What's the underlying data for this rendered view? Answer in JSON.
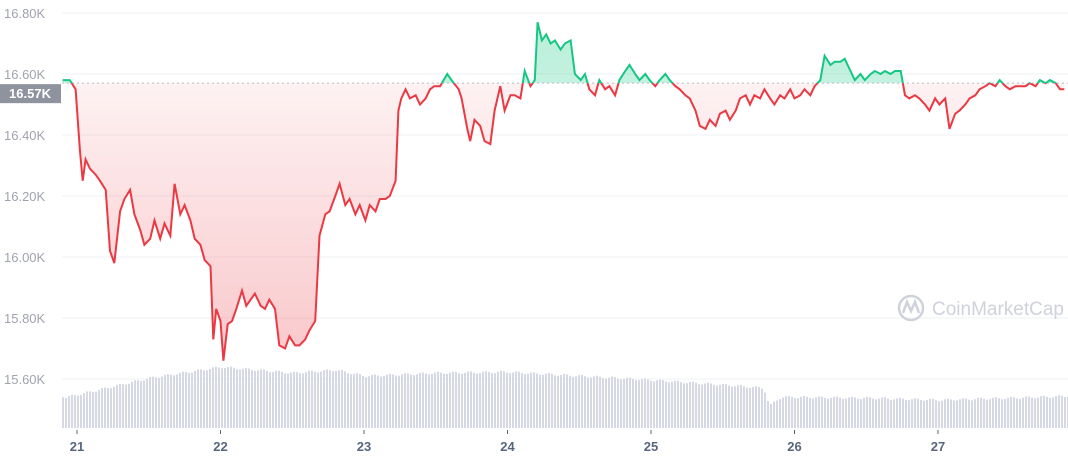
{
  "watermark": "CoinMarketCap",
  "colors": {
    "up": "#16c784",
    "down": "#ea3943",
    "volume": "#d6d8e6",
    "reference_label_bg": "#8f939e",
    "grid": "#eff2f5"
  },
  "chart_data": {
    "type": "line",
    "title": "",
    "xlabel": "",
    "ylabel": "",
    "ylim": [
      15.5,
      16.84
    ],
    "xlim": [
      20.9,
      27.91
    ],
    "grid": true,
    "y_ticks": [
      "15.60K",
      "15.80K",
      "16.00K",
      "16.20K",
      "16.40K",
      "16.60K",
      "16.80K"
    ],
    "y_tick_values": [
      15.6,
      15.8,
      16.0,
      16.2,
      16.4,
      16.6,
      16.8
    ],
    "x_ticks": [
      "21",
      "22",
      "23",
      "24",
      "25",
      "26",
      "27"
    ],
    "x_tick_values": [
      21,
      22,
      23,
      24,
      25,
      26,
      27
    ],
    "reference_value": 16.57,
    "reference_label": "16.57K",
    "price": [
      [
        20.9,
        16.58
      ],
      [
        20.95,
        16.58
      ],
      [
        20.99,
        16.55
      ],
      [
        21.02,
        16.35
      ],
      [
        21.04,
        16.25
      ],
      [
        21.06,
        16.32
      ],
      [
        21.09,
        16.29
      ],
      [
        21.13,
        16.27
      ],
      [
        21.16,
        16.25
      ],
      [
        21.2,
        16.22
      ],
      [
        21.23,
        16.02
      ],
      [
        21.26,
        15.98
      ],
      [
        21.3,
        16.15
      ],
      [
        21.33,
        16.19
      ],
      [
        21.37,
        16.22
      ],
      [
        21.4,
        16.14
      ],
      [
        21.44,
        16.09
      ],
      [
        21.47,
        16.04
      ],
      [
        21.51,
        16.06
      ],
      [
        21.54,
        16.12
      ],
      [
        21.58,
        16.06
      ],
      [
        21.61,
        16.11
      ],
      [
        21.65,
        16.07
      ],
      [
        21.68,
        16.24
      ],
      [
        21.72,
        16.14
      ],
      [
        21.75,
        16.17
      ],
      [
        21.79,
        16.12
      ],
      [
        21.82,
        16.06
      ],
      [
        21.86,
        16.04
      ],
      [
        21.89,
        15.99
      ],
      [
        21.93,
        15.97
      ],
      [
        21.95,
        15.73
      ],
      [
        21.97,
        15.83
      ],
      [
        22.0,
        15.79
      ],
      [
        22.02,
        15.66
      ],
      [
        22.05,
        15.78
      ],
      [
        22.08,
        15.79
      ],
      [
        22.11,
        15.83
      ],
      [
        22.15,
        15.89
      ],
      [
        22.18,
        15.84
      ],
      [
        22.21,
        15.86
      ],
      [
        22.24,
        15.88
      ],
      [
        22.28,
        15.84
      ],
      [
        22.31,
        15.83
      ],
      [
        22.34,
        15.86
      ],
      [
        22.38,
        15.83
      ],
      [
        22.41,
        15.71
      ],
      [
        22.45,
        15.7
      ],
      [
        22.48,
        15.74
      ],
      [
        22.52,
        15.71
      ],
      [
        22.55,
        15.71
      ],
      [
        22.59,
        15.73
      ],
      [
        22.62,
        15.76
      ],
      [
        22.66,
        15.79
      ],
      [
        22.69,
        16.07
      ],
      [
        22.73,
        16.14
      ],
      [
        22.76,
        16.15
      ],
      [
        22.8,
        16.2
      ],
      [
        22.83,
        16.24
      ],
      [
        22.87,
        16.17
      ],
      [
        22.9,
        16.19
      ],
      [
        22.94,
        16.14
      ],
      [
        22.97,
        16.17
      ],
      [
        23.01,
        16.12
      ],
      [
        23.04,
        16.17
      ],
      [
        23.08,
        16.15
      ],
      [
        23.11,
        16.19
      ],
      [
        23.15,
        16.19
      ],
      [
        23.18,
        16.2
      ],
      [
        23.22,
        16.25
      ],
      [
        23.24,
        16.48
      ],
      [
        23.26,
        16.52
      ],
      [
        23.29,
        16.55
      ],
      [
        23.32,
        16.52
      ],
      [
        23.36,
        16.53
      ],
      [
        23.39,
        16.5
      ],
      [
        23.43,
        16.52
      ],
      [
        23.46,
        16.55
      ],
      [
        23.49,
        16.56
      ],
      [
        23.53,
        16.56
      ],
      [
        23.58,
        16.6
      ],
      [
        23.61,
        16.58
      ],
      [
        23.66,
        16.55
      ],
      [
        23.68,
        16.52
      ],
      [
        23.72,
        16.42
      ],
      [
        23.74,
        16.38
      ],
      [
        23.77,
        16.45
      ],
      [
        23.81,
        16.43
      ],
      [
        23.84,
        16.38
      ],
      [
        23.88,
        16.37
      ],
      [
        23.91,
        16.48
      ],
      [
        23.95,
        16.56
      ],
      [
        23.98,
        16.48
      ],
      [
        24.02,
        16.53
      ],
      [
        24.05,
        16.53
      ],
      [
        24.09,
        16.52
      ],
      [
        24.12,
        16.61
      ],
      [
        24.16,
        16.56
      ],
      [
        24.19,
        16.58
      ],
      [
        24.21,
        16.77
      ],
      [
        24.24,
        16.71
      ],
      [
        24.27,
        16.73
      ],
      [
        24.3,
        16.7
      ],
      [
        24.33,
        16.71
      ],
      [
        24.37,
        16.68
      ],
      [
        24.4,
        16.7
      ],
      [
        24.44,
        16.71
      ],
      [
        24.47,
        16.6
      ],
      [
        24.51,
        16.58
      ],
      [
        24.54,
        16.6
      ],
      [
        24.57,
        16.55
      ],
      [
        24.61,
        16.53
      ],
      [
        24.64,
        16.58
      ],
      [
        24.68,
        16.55
      ],
      [
        24.71,
        16.56
      ],
      [
        24.75,
        16.53
      ],
      [
        24.78,
        16.58
      ],
      [
        24.82,
        16.61
      ],
      [
        24.85,
        16.63
      ],
      [
        24.89,
        16.6
      ],
      [
        24.92,
        16.58
      ],
      [
        24.96,
        16.6
      ],
      [
        24.99,
        16.58
      ],
      [
        25.03,
        16.56
      ],
      [
        25.06,
        16.58
      ],
      [
        25.1,
        16.6
      ],
      [
        25.13,
        16.58
      ],
      [
        25.17,
        16.56
      ],
      [
        25.2,
        16.55
      ],
      [
        25.24,
        16.53
      ],
      [
        25.27,
        16.52
      ],
      [
        25.31,
        16.48
      ],
      [
        25.34,
        16.43
      ],
      [
        25.38,
        16.42
      ],
      [
        25.41,
        16.45
      ],
      [
        25.45,
        16.43
      ],
      [
        25.48,
        16.47
      ],
      [
        25.52,
        16.48
      ],
      [
        25.55,
        16.45
      ],
      [
        25.59,
        16.48
      ],
      [
        25.62,
        16.52
      ],
      [
        25.66,
        16.53
      ],
      [
        25.69,
        16.5
      ],
      [
        25.72,
        16.53
      ],
      [
        25.76,
        16.52
      ],
      [
        25.79,
        16.55
      ],
      [
        25.83,
        16.52
      ],
      [
        25.86,
        16.5
      ],
      [
        25.9,
        16.53
      ],
      [
        25.93,
        16.52
      ],
      [
        25.97,
        16.55
      ],
      [
        26.0,
        16.52
      ],
      [
        26.04,
        16.53
      ],
      [
        26.07,
        16.55
      ],
      [
        26.11,
        16.53
      ],
      [
        26.14,
        16.56
      ],
      [
        26.18,
        16.58
      ],
      [
        26.21,
        16.66
      ],
      [
        26.25,
        16.63
      ],
      [
        26.28,
        16.64
      ],
      [
        26.32,
        16.64
      ],
      [
        26.35,
        16.65
      ],
      [
        26.39,
        16.61
      ],
      [
        26.42,
        16.58
      ],
      [
        26.46,
        16.6
      ],
      [
        26.49,
        16.58
      ],
      [
        26.53,
        16.6
      ],
      [
        26.56,
        16.61
      ],
      [
        26.6,
        16.6
      ],
      [
        26.63,
        16.61
      ],
      [
        26.67,
        16.6
      ],
      [
        26.7,
        16.61
      ],
      [
        26.74,
        16.61
      ],
      [
        26.77,
        16.53
      ],
      [
        26.8,
        16.52
      ],
      [
        26.84,
        16.53
      ],
      [
        26.87,
        16.52
      ],
      [
        26.91,
        16.5
      ],
      [
        26.94,
        16.48
      ],
      [
        26.98,
        16.52
      ],
      [
        27.01,
        16.5
      ],
      [
        27.05,
        16.52
      ],
      [
        27.08,
        16.42
      ],
      [
        27.12,
        16.47
      ],
      [
        27.15,
        16.48
      ],
      [
        27.19,
        16.5
      ],
      [
        27.22,
        16.52
      ],
      [
        27.26,
        16.53
      ],
      [
        27.29,
        16.55
      ],
      [
        27.33,
        16.56
      ],
      [
        27.36,
        16.57
      ],
      [
        27.4,
        16.56
      ],
      [
        27.43,
        16.58
      ],
      [
        27.47,
        16.56
      ],
      [
        27.5,
        16.55
      ],
      [
        27.54,
        16.56
      ],
      [
        27.57,
        16.56
      ],
      [
        27.61,
        16.56
      ],
      [
        27.64,
        16.57
      ],
      [
        27.68,
        16.56
      ],
      [
        27.71,
        16.58
      ],
      [
        27.75,
        16.57
      ],
      [
        27.78,
        16.58
      ],
      [
        27.82,
        16.57
      ],
      [
        27.85,
        16.55
      ],
      [
        27.88,
        16.55
      ]
    ],
    "volume_relative": [
      [
        20.9,
        30
      ],
      [
        21.5,
        50
      ],
      [
        22.0,
        61
      ],
      [
        22.5,
        55
      ],
      [
        22.8,
        58
      ],
      [
        23.0,
        52
      ],
      [
        23.5,
        55
      ],
      [
        24.0,
        56
      ],
      [
        24.5,
        52
      ],
      [
        25.0,
        48
      ],
      [
        25.6,
        42
      ],
      [
        25.78,
        40
      ],
      [
        25.82,
        22
      ],
      [
        25.9,
        31
      ],
      [
        26.5,
        30
      ],
      [
        27.0,
        28
      ],
      [
        27.5,
        30
      ],
      [
        27.91,
        32
      ]
    ]
  }
}
